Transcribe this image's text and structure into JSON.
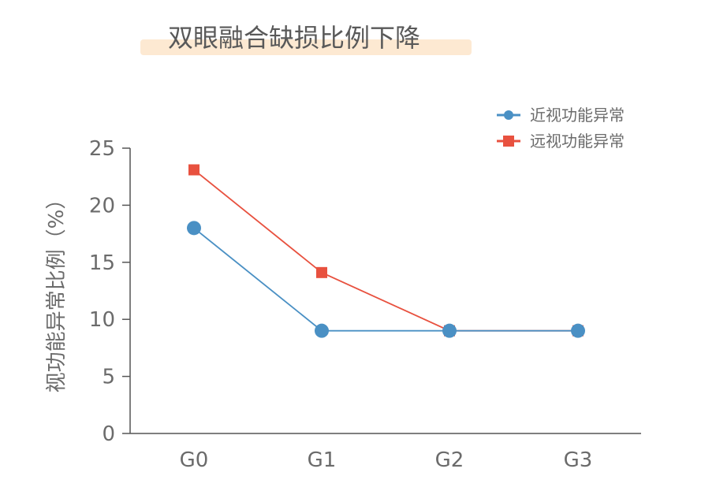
{
  "chart_data": {
    "type": "line",
    "title": "双眼融合缺损比例下降",
    "xlabel": "",
    "ylabel": "视功能异常比例（%）",
    "categories": [
      "G0",
      "G1",
      "G2",
      "G3"
    ],
    "ylim": [
      0,
      25
    ],
    "yticks": [
      "0",
      "5",
      "10",
      "15",
      "20",
      "25"
    ],
    "grid": false,
    "legend_position": "top-right",
    "series": [
      {
        "name": "近视功能异常",
        "values": [
          18,
          9,
          9,
          9
        ],
        "color": "#4a90c4",
        "marker": "circle"
      },
      {
        "name": "远视功能异常",
        "values": [
          23.1,
          14.1,
          9,
          9
        ],
        "color": "#e8513f",
        "marker": "square"
      }
    ],
    "title_highlight_color": "#fde9d2"
  }
}
